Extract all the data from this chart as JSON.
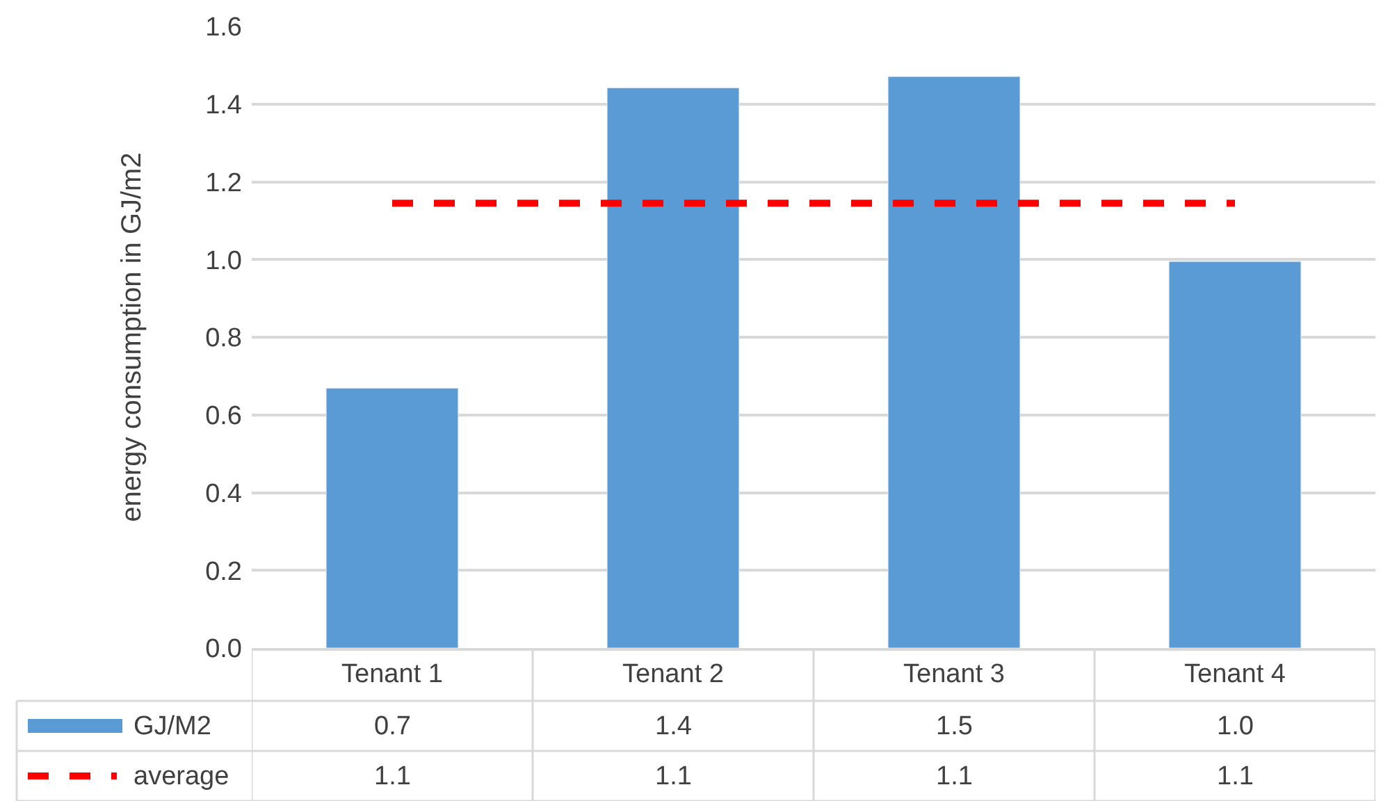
{
  "chart_data": {
    "type": "bar",
    "ylabel": "energy consumption in GJ/m2",
    "categories": [
      "Tenant 1",
      "Tenant 2",
      "Tenant 3",
      "Tenant 4"
    ],
    "series": [
      {
        "name": "GJ/M2",
        "color": "#5b9bd5",
        "values": [
          0.669,
          1.442,
          1.471,
          0.995
        ],
        "value_labels": [
          "0.7",
          "1.4",
          "1.5",
          "1.0"
        ]
      },
      {
        "name": "average",
        "type": "line",
        "color": "#ff0000",
        "line_style": "dashed",
        "values": [
          1.145,
          1.145,
          1.145,
          1.145
        ],
        "value_labels": [
          "1.1",
          "1.1",
          "1.1",
          "1.1"
        ]
      }
    ],
    "ylim": [
      0,
      1.6
    ],
    "yticks": [
      {
        "value": 0,
        "label": "0.0"
      },
      {
        "value": 0.2,
        "label": "0.2"
      },
      {
        "value": 0.4,
        "label": "0.4"
      },
      {
        "value": 0.6,
        "label": "0.6"
      },
      {
        "value": 0.8,
        "label": "0.8"
      },
      {
        "value": 1.0,
        "label": "1.0"
      },
      {
        "value": 1.2,
        "label": "1.2"
      },
      {
        "value": 1.4,
        "label": "1.4"
      },
      {
        "value": 1.6,
        "label": "1.6"
      }
    ],
    "grid": "y",
    "legend": "bottom left"
  }
}
